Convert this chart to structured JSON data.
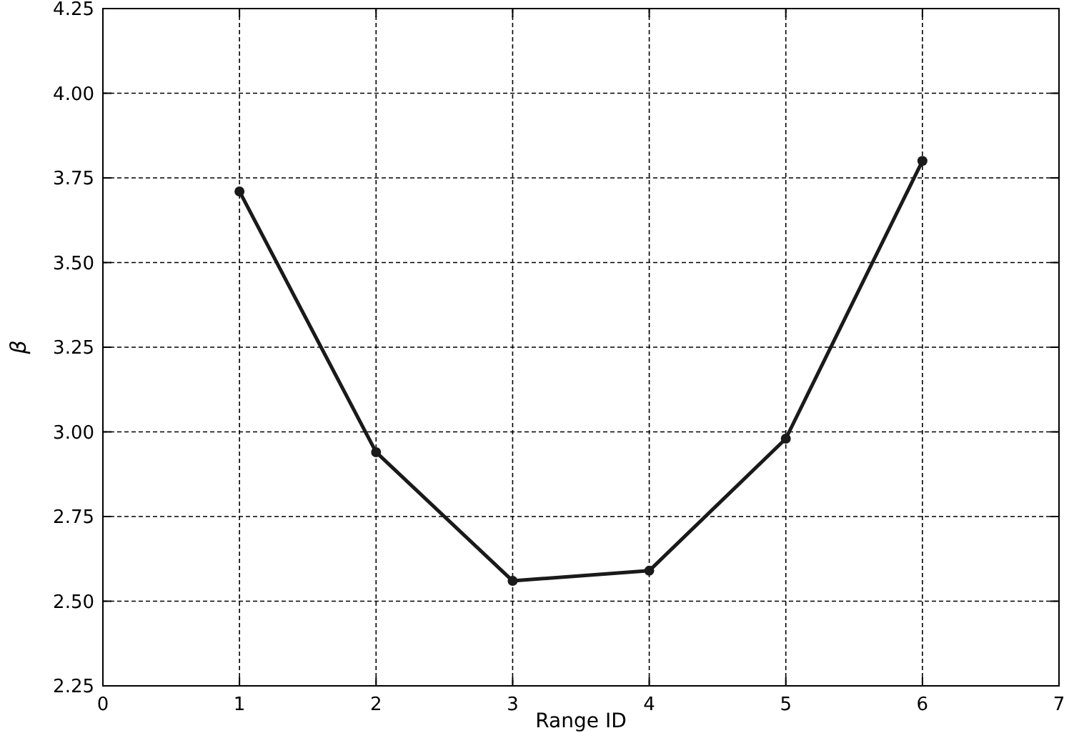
{
  "chart_data": {
    "type": "line",
    "xlabel": "Range ID",
    "ylabel": "β",
    "x": [
      1,
      2,
      3,
      4,
      5,
      6
    ],
    "series": [
      {
        "color": "#1a1a1a",
        "values": [
          3.71,
          2.94,
          2.56,
          2.59,
          2.98,
          3.8
        ]
      }
    ],
    "xlim": [
      0,
      7
    ],
    "xticks": [
      0,
      1,
      2,
      3,
      4,
      5,
      6,
      7
    ],
    "ylim": [
      2.25,
      4.25
    ],
    "yticks": [
      2.25,
      {
        "value": 2.5,
        "label": "2.50"
      },
      2.75,
      {
        "value": 3,
        "label": "3.00"
      },
      3.25,
      {
        "value": 3.5,
        "label": "3.50"
      },
      3.75,
      {
        "value": 4,
        "label": "4.00"
      },
      4.25
    ],
    "grid": true,
    "marker": "circle",
    "line_style": "solid"
  }
}
